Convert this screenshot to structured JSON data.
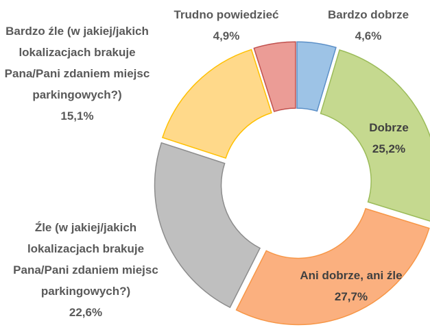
{
  "chart_data": {
    "type": "donut",
    "categories": [
      "Bardzo dobrze",
      "Dobrze",
      "Ani dobrze, ani źle",
      "Źle (w jakiej/jakich lokalizacjach brakuje Pana/Pani zdaniem miejsc parkingowych?)",
      "Bardzo źle (w jakiej/jakich lokalizacjach brakuje Pana/Pani zdaniem miejsc parkingowych?)",
      "Trudno powiedzieć"
    ],
    "values": [
      4.6,
      25.2,
      27.7,
      22.6,
      15.1,
      4.9
    ],
    "value_labels": [
      "4,6%",
      "25,2%",
      "27,7%",
      "22,6%",
      "15,1%",
      "4,9%"
    ],
    "colors": [
      "#9dc3e6",
      "#c5d98f",
      "#fbb07f",
      "#bfbfbf",
      "#ffd98a",
      "#eb9c96"
    ]
  }
}
